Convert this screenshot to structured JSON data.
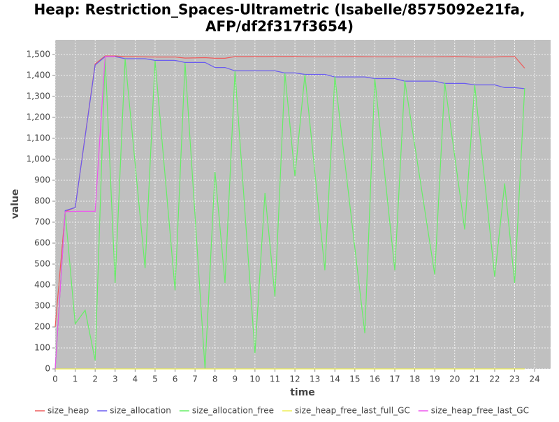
{
  "chart_data": {
    "type": "line",
    "title": "Heap: Restriction_Spaces-Ultrametric (Isabelle/8575092e21fa,",
    "subtitle": "AFP/df2f317f3654)",
    "x_label": "time",
    "y_label": "value",
    "xlim": [
      0,
      24.8
    ],
    "ylim": [
      0,
      1570
    ],
    "xticks": [
      0,
      1,
      2,
      3,
      4,
      5,
      6,
      7,
      8,
      9,
      10,
      11,
      12,
      13,
      14,
      15,
      16,
      17,
      18,
      19,
      20,
      21,
      22,
      23,
      24
    ],
    "yticks": [
      0,
      100,
      200,
      300,
      400,
      500,
      600,
      700,
      800,
      900,
      {
        "value": 1000,
        "label": "1,000"
      },
      {
        "value": 1100,
        "label": "1,100"
      },
      {
        "value": 1200,
        "label": "1,200"
      },
      {
        "value": 1300,
        "label": "1,300"
      },
      {
        "value": 1400,
        "label": "1,400"
      },
      {
        "value": 1500,
        "label": "1,500"
      }
    ],
    "grid": true,
    "series": [
      {
        "name": "size_heap",
        "color": "#ee5c5c",
        "x": [
          0,
          0.5,
          1,
          2,
          2.5,
          3,
          3.5,
          5,
          6,
          6.5,
          7.5,
          8,
          8.5,
          9,
          12,
          13,
          15,
          16,
          19,
          20,
          21,
          22,
          22.5,
          23,
          23.5
        ],
        "values": [
          200,
          750,
          770,
          1455,
          1493,
          1493,
          1490,
          1488,
          1488,
          1483,
          1485,
          1482,
          1482,
          1490,
          1491,
          1489,
          1490,
          1489,
          1489,
          1490,
          1488,
          1488,
          1490,
          1490,
          1435
        ]
      },
      {
        "name": "size_allocation",
        "color": "#6a5cf0",
        "x": [
          0,
          0.5,
          1,
          2,
          2.5,
          3,
          3.5,
          4.5,
          5,
          6,
          6.5,
          7.5,
          8,
          8.5,
          9,
          11,
          11.5,
          12,
          12.5,
          13.5,
          14,
          15.5,
          16,
          17,
          17.5,
          19,
          19.5,
          20.5,
          21,
          22,
          22.5,
          23,
          23.5
        ],
        "values": [
          0,
          755,
          770,
          1450,
          1490,
          1490,
          1480,
          1480,
          1472,
          1472,
          1462,
          1462,
          1438,
          1438,
          1422,
          1422,
          1412,
          1412,
          1405,
          1405,
          1393,
          1393,
          1385,
          1385,
          1373,
          1373,
          1362,
          1362,
          1355,
          1355,
          1342,
          1342,
          1337
        ]
      },
      {
        "name": "size_allocation_free",
        "color": "#66ee66",
        "x": [
          0,
          0.5,
          1,
          1.5,
          2,
          2.5,
          3,
          3.5,
          4.5,
          5,
          6,
          6.5,
          7.5,
          8,
          8.5,
          9,
          10,
          10.5,
          11,
          11.5,
          12,
          12.5,
          13.5,
          14,
          15.5,
          16,
          17,
          17.5,
          19,
          19.5,
          20.5,
          21,
          22,
          22.5,
          23,
          23.5
        ],
        "values": [
          0,
          750,
          215,
          280,
          40,
          1490,
          410,
          1480,
          480,
          1470,
          375,
          1460,
          0,
          940,
          410,
          1420,
          75,
          840,
          345,
          1410,
          920,
          1405,
          470,
          1395,
          170,
          1385,
          470,
          1375,
          450,
          1365,
          665,
          1355,
          440,
          885,
          410,
          1340
        ]
      },
      {
        "name": "size_heap_free_last_full_GC",
        "color": "#eeee55",
        "x": [
          0,
          23.5
        ],
        "values": [
          0,
          0
        ]
      },
      {
        "name": "size_heap_free_last_GC",
        "color": "#ee55ee",
        "x": [
          0,
          0.5,
          1,
          2,
          2.5,
          3
        ],
        "values": [
          0,
          750,
          752,
          752,
          1490,
          1490
        ]
      }
    ]
  }
}
